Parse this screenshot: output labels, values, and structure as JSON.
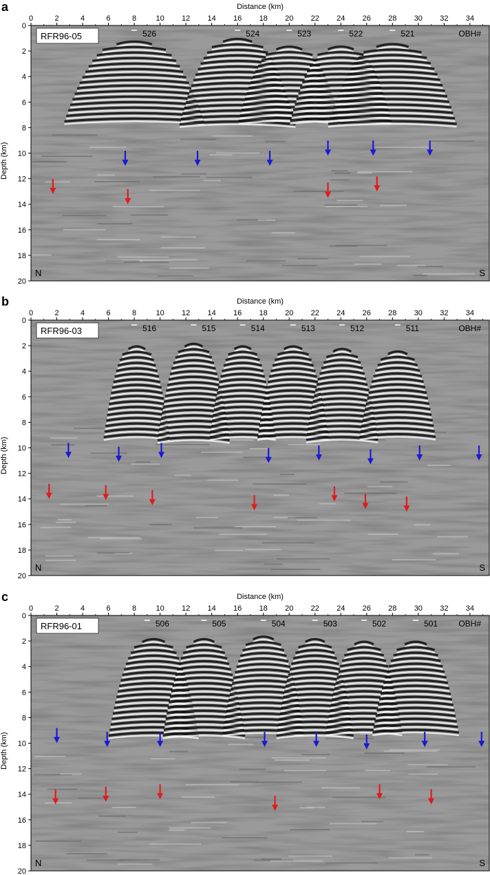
{
  "colors": {
    "background": "#9a9a9a",
    "dark_stripe": "#141414",
    "light_stripe": "#f6f6f6",
    "blue_arrow": "#1a1ad6",
    "red_arrow": "#e21b1b",
    "label_box": "#ffffff",
    "frame": "#000000"
  },
  "chart_data": [
    {
      "type": "seismic-section",
      "panel_letter": "a",
      "profile": "RFR96-05",
      "xlabel": "Distance (km)",
      "ylabel": "Depth (km)",
      "xlim": [
        0,
        35.5
      ],
      "ylim": [
        0,
        20
      ],
      "xticks": [
        0,
        2,
        4,
        6,
        8,
        10,
        12,
        14,
        16,
        18,
        20,
        22,
        24,
        26,
        28,
        30,
        32,
        34
      ],
      "yticks": [
        0,
        2,
        4,
        6,
        8,
        10,
        12,
        14,
        16,
        18,
        20
      ],
      "obh_header": "OBH#",
      "obh": [
        {
          "label": "526",
          "x": 8.0
        },
        {
          "label": "524",
          "x": 16.0
        },
        {
          "label": "523",
          "x": 20.0
        },
        {
          "label": "522",
          "x": 24.0
        },
        {
          "label": "521",
          "x": 28.0
        }
      ],
      "left_label": "N",
      "right_label": "S",
      "blue_arrows": [
        [
          7.3,
          11.0
        ],
        [
          12.9,
          11.0
        ],
        [
          18.5,
          11.0
        ],
        [
          23.0,
          10.2
        ],
        [
          26.5,
          10.2
        ],
        [
          30.9,
          10.2
        ]
      ],
      "red_arrows": [
        [
          1.7,
          13.2
        ],
        [
          7.5,
          14.0
        ],
        [
          23.0,
          13.5
        ],
        [
          26.8,
          13.0
        ]
      ],
      "domes": [
        {
          "x": 8.0,
          "top": 1.2,
          "hw": 5.5
        },
        {
          "x": 16.0,
          "top": 1.0,
          "hw": 4.5
        },
        {
          "x": 20.0,
          "top": 1.6,
          "hw": 4.0
        },
        {
          "x": 24.0,
          "top": 1.6,
          "hw": 4.0
        },
        {
          "x": 28.0,
          "top": 1.4,
          "hw": 5.0
        }
      ]
    },
    {
      "type": "seismic-section",
      "panel_letter": "b",
      "profile": "RFR96-03",
      "xlabel": "Distance (km)",
      "ylabel": "Depth (km)",
      "xlim": [
        0,
        35.5
      ],
      "ylim": [
        0,
        20
      ],
      "xticks": [
        0,
        2,
        4,
        6,
        8,
        10,
        12,
        14,
        16,
        18,
        20,
        22,
        24,
        26,
        28,
        30,
        32,
        34
      ],
      "yticks": [
        0,
        2,
        4,
        6,
        8,
        10,
        12,
        14,
        16,
        18,
        20
      ],
      "obh_header": "OBH#",
      "obh": [
        {
          "label": "516",
          "x": 8.0
        },
        {
          "label": "515",
          "x": 12.6
        },
        {
          "label": "514",
          "x": 16.4
        },
        {
          "label": "513",
          "x": 20.3
        },
        {
          "label": "512",
          "x": 24.1
        },
        {
          "label": "511",
          "x": 28.4
        }
      ],
      "left_label": "N",
      "right_label": "S",
      "blue_arrows": [
        [
          2.9,
          10.8
        ],
        [
          6.8,
          11.1
        ],
        [
          10.1,
          10.8
        ],
        [
          18.4,
          11.2
        ],
        [
          22.3,
          11.0
        ],
        [
          26.3,
          11.3
        ],
        [
          30.1,
          11.0
        ],
        [
          34.7,
          11.0
        ]
      ],
      "red_arrows": [
        [
          1.4,
          14.0
        ],
        [
          5.8,
          14.1
        ],
        [
          9.4,
          14.5
        ],
        [
          17.3,
          14.9
        ],
        [
          23.5,
          14.2
        ],
        [
          25.9,
          14.8
        ],
        [
          29.1,
          15.0
        ]
      ],
      "domes": [
        {
          "x": 8.2,
          "top": 2.0,
          "hw": 2.6
        },
        {
          "x": 12.6,
          "top": 1.8,
          "hw": 2.8
        },
        {
          "x": 16.4,
          "top": 2.0,
          "hw": 2.6
        },
        {
          "x": 20.3,
          "top": 2.0,
          "hw": 2.8
        },
        {
          "x": 24.1,
          "top": 2.2,
          "hw": 2.8
        },
        {
          "x": 28.4,
          "top": 2.4,
          "hw": 3.0
        }
      ]
    },
    {
      "type": "seismic-section",
      "panel_letter": "c",
      "profile": "RFR96-01",
      "xlabel": "Distance (km)",
      "ylabel": "Depth (km)",
      "xlim": [
        0,
        35.5
      ],
      "ylim": [
        0,
        20
      ],
      "xticks": [
        0,
        2,
        4,
        6,
        8,
        10,
        12,
        14,
        16,
        18,
        20,
        22,
        24,
        26,
        28,
        30,
        32,
        34
      ],
      "yticks": [
        0,
        2,
        4,
        6,
        8,
        10,
        12,
        14,
        16,
        18,
        20
      ],
      "obh_header": "OBH#",
      "obh": [
        {
          "label": "506",
          "x": 9.0
        },
        {
          "label": "505",
          "x": 13.4
        },
        {
          "label": "504",
          "x": 18.0
        },
        {
          "label": "503",
          "x": 22.0
        },
        {
          "label": "502",
          "x": 25.8
        },
        {
          "label": "501",
          "x": 29.8
        }
      ],
      "left_label": "N",
      "right_label": "S",
      "blue_arrows": [
        [
          2.0,
          10.0
        ],
        [
          5.9,
          10.3
        ],
        [
          10.0,
          10.3
        ],
        [
          18.1,
          10.3
        ],
        [
          22.1,
          10.3
        ],
        [
          26.0,
          10.5
        ],
        [
          30.5,
          10.3
        ],
        [
          34.9,
          10.3
        ]
      ],
      "red_arrows": [
        [
          1.9,
          14.8
        ],
        [
          5.8,
          14.6
        ],
        [
          10.0,
          14.4
        ],
        [
          18.9,
          15.3
        ],
        [
          27.0,
          14.4
        ],
        [
          31.0,
          14.8
        ]
      ],
      "domes": [
        {
          "x": 9.5,
          "top": 1.8,
          "hw": 3.5
        },
        {
          "x": 13.4,
          "top": 1.8,
          "hw": 3.2
        },
        {
          "x": 18.0,
          "top": 1.6,
          "hw": 3.2
        },
        {
          "x": 22.0,
          "top": 1.8,
          "hw": 3.0
        },
        {
          "x": 25.8,
          "top": 2.0,
          "hw": 3.0
        },
        {
          "x": 29.8,
          "top": 2.0,
          "hw": 3.4
        }
      ]
    }
  ]
}
